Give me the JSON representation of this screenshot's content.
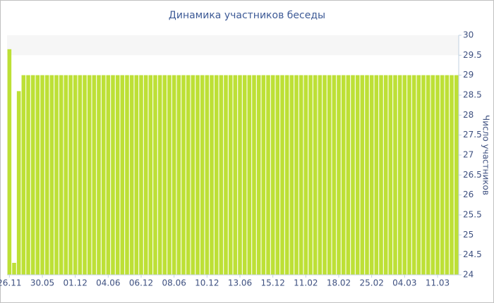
{
  "chart_data": {
    "type": "bar",
    "title": "Динамика участников беседы",
    "y_axis_label": "Число участников",
    "categories": [
      "26.11",
      null,
      null,
      null,
      null,
      null,
      null,
      "30.05",
      null,
      null,
      null,
      null,
      null,
      null,
      "01.12",
      null,
      null,
      null,
      null,
      null,
      null,
      "04.06",
      null,
      null,
      null,
      null,
      null,
      null,
      "06.12",
      null,
      null,
      null,
      null,
      null,
      null,
      "08.06",
      null,
      null,
      null,
      null,
      null,
      null,
      "10.12",
      null,
      null,
      null,
      null,
      null,
      null,
      "13.06",
      null,
      null,
      null,
      null,
      null,
      null,
      "15.12",
      null,
      null,
      null,
      null,
      null,
      null,
      "11.02",
      null,
      null,
      null,
      null,
      null,
      null,
      "18.02",
      null,
      null,
      null,
      null,
      null,
      null,
      "25.02",
      null,
      null,
      null,
      null,
      null,
      null,
      "04.03",
      null,
      null,
      null,
      null,
      null,
      null,
      "11.03",
      null,
      null,
      null,
      null
    ],
    "values": [
      29.65,
      24.3,
      28.6,
      29,
      29,
      29,
      29,
      29,
      29,
      29,
      29,
      29,
      29,
      29,
      29,
      29,
      29,
      29,
      29,
      29,
      29,
      29,
      29,
      29,
      29,
      29,
      29,
      29,
      29,
      29,
      29,
      29,
      29,
      29,
      29,
      29,
      29,
      29,
      29,
      29,
      29,
      29,
      29,
      29,
      29,
      29,
      29,
      29,
      29,
      29,
      29,
      29,
      29,
      29,
      29,
      29,
      29,
      29,
      29,
      29,
      29,
      29,
      29,
      29,
      29,
      29,
      29,
      29,
      29,
      29,
      29,
      29,
      29,
      29,
      29,
      29,
      29,
      29,
      29,
      29,
      29,
      29,
      29,
      29,
      29,
      29,
      29,
      29,
      29,
      29,
      29,
      29,
      29,
      29,
      29,
      29
    ],
    "color": "#bde036",
    "ylim": [
      24,
      30
    ],
    "yticks": [
      24,
      24.5,
      25,
      25.5,
      26,
      26.5,
      27,
      27.5,
      28,
      28.5,
      29,
      29.5,
      30
    ],
    "y_axis_side": "right",
    "band": [
      29.5,
      30
    ],
    "band_color": "#f6f6f6"
  }
}
